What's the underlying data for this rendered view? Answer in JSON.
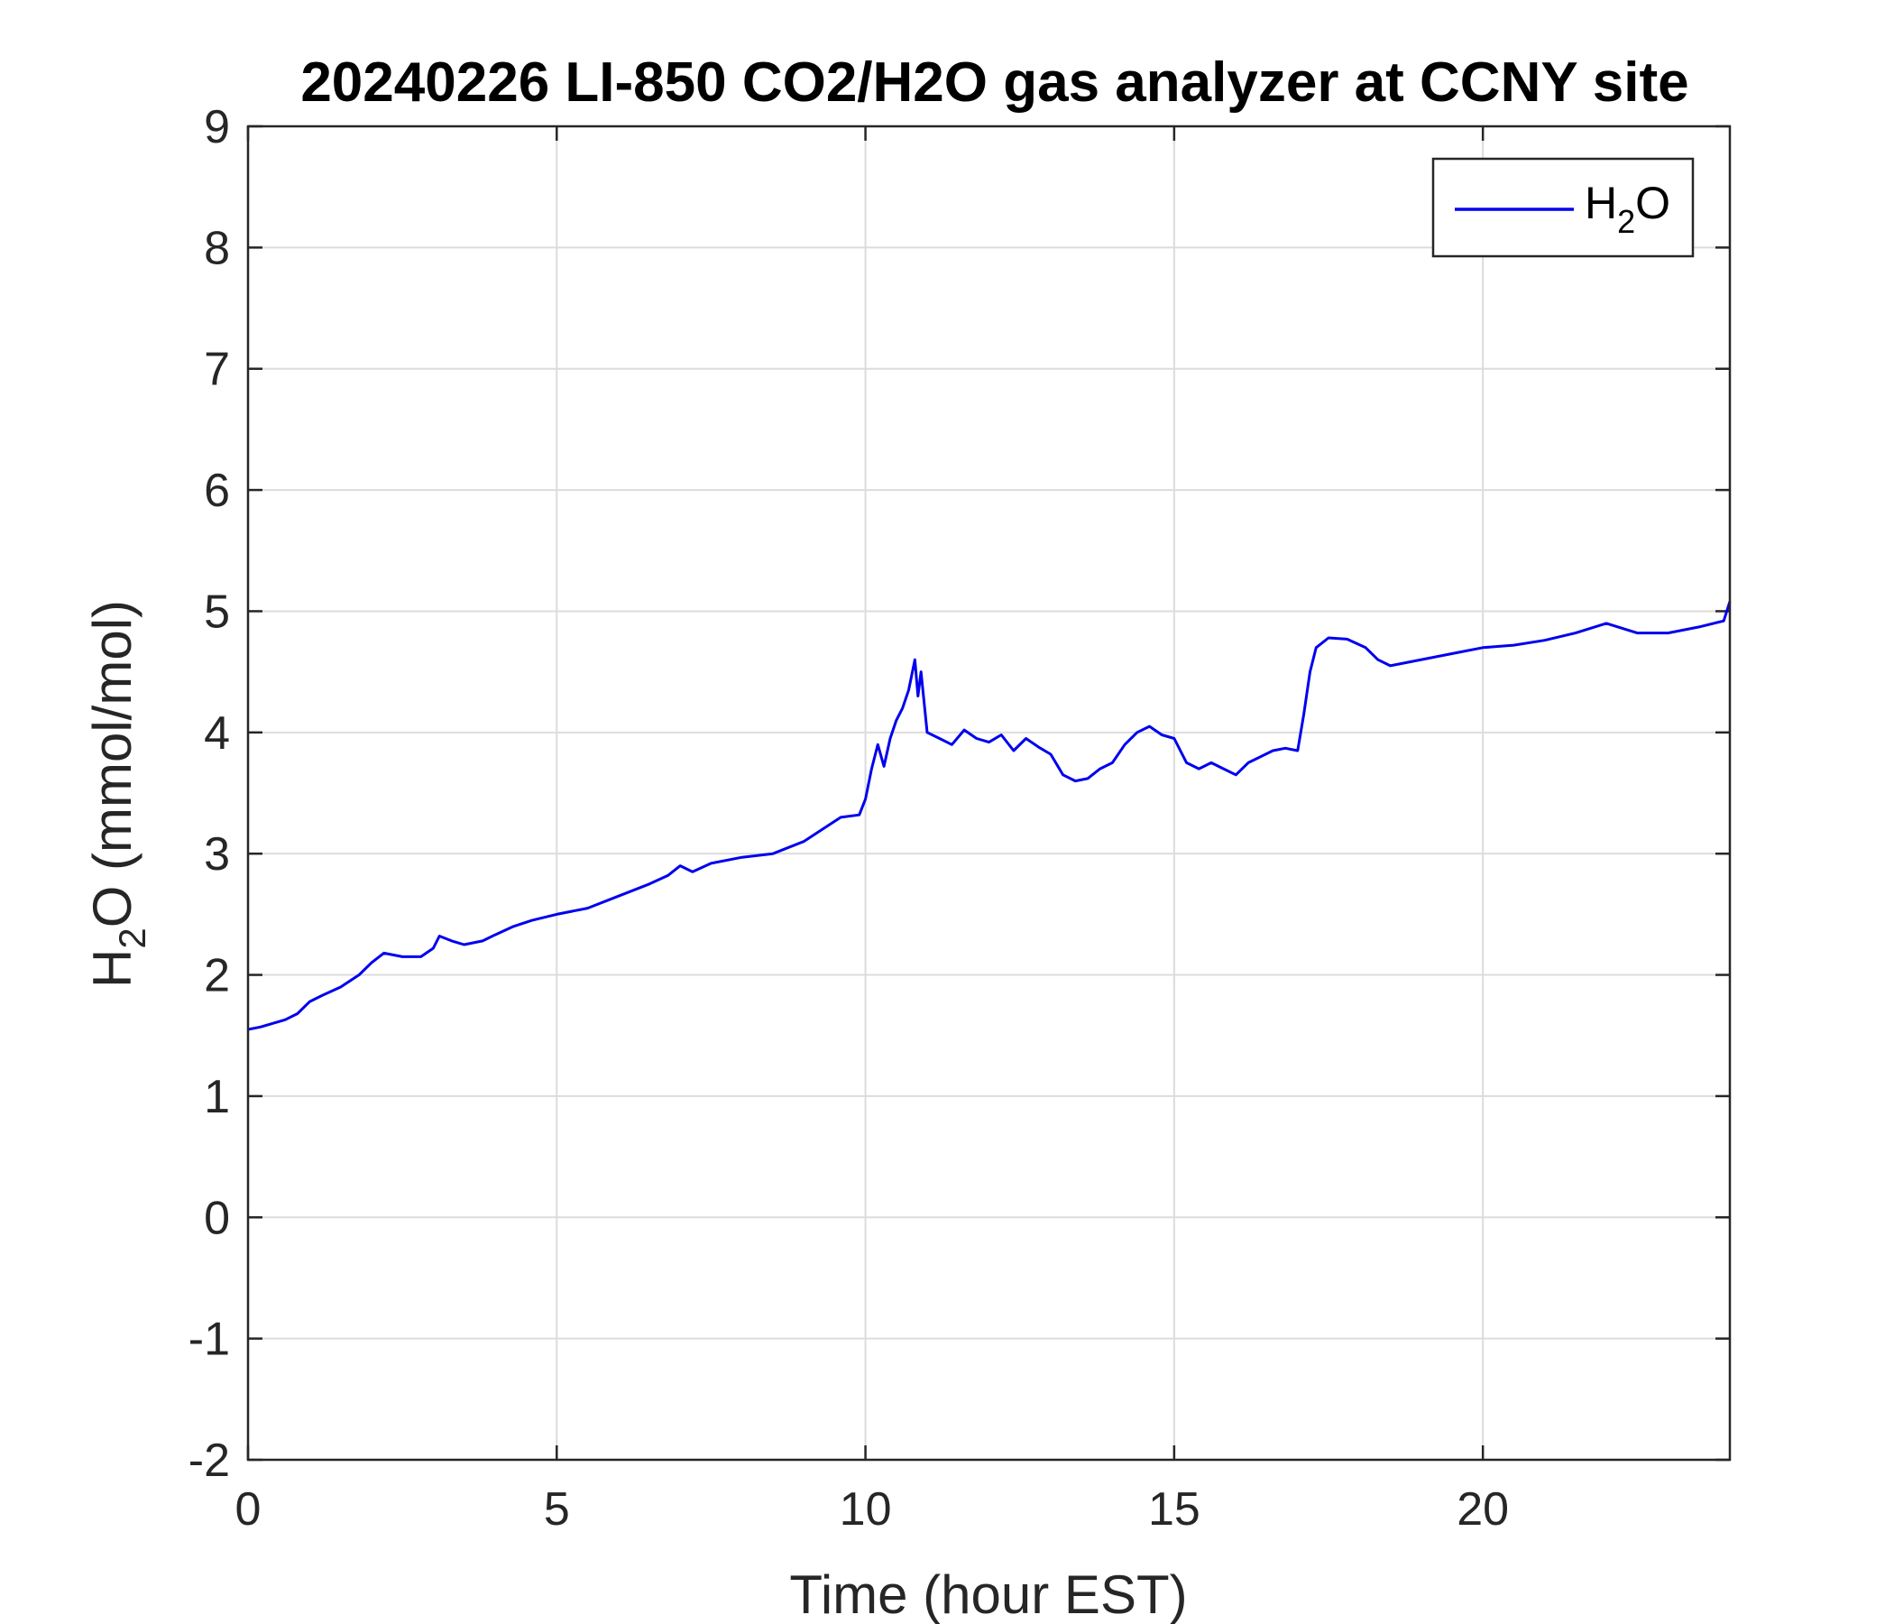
{
  "chart_data": {
    "type": "line",
    "title": "20240226 LI-850 CO2/H2O gas analyzer at CCNY site",
    "xlabel": "Time (hour EST)",
    "ylabel_main": "H",
    "ylabel_sub": "2",
    "ylabel_rest": "O (mmol/mol)",
    "xlim": [
      0,
      24
    ],
    "ylim": [
      -2,
      9
    ],
    "xticks": [
      0,
      5,
      10,
      15,
      20
    ],
    "yticks": [
      -2,
      -1,
      0,
      1,
      2,
      3,
      4,
      5,
      6,
      7,
      8,
      9
    ],
    "grid": true,
    "legend_position": "top-right",
    "series": [
      {
        "name_main": "H",
        "name_sub": "2",
        "name_rest": "O",
        "color": "#0000ee",
        "x": [
          0,
          0.2,
          0.4,
          0.6,
          0.8,
          1.0,
          1.2,
          1.5,
          1.8,
          2.0,
          2.2,
          2.5,
          2.8,
          3.0,
          3.1,
          3.3,
          3.5,
          3.8,
          4.0,
          4.3,
          4.6,
          5.0,
          5.5,
          6.0,
          6.5,
          6.8,
          7.0,
          7.2,
          7.5,
          8.0,
          8.5,
          9.0,
          9.3,
          9.6,
          9.9,
          10.0,
          10.1,
          10.2,
          10.3,
          10.4,
          10.5,
          10.6,
          10.7,
          10.8,
          10.85,
          10.9,
          11.0,
          11.2,
          11.4,
          11.6,
          11.8,
          12.0,
          12.2,
          12.4,
          12.6,
          12.8,
          13.0,
          13.2,
          13.4,
          13.6,
          13.8,
          14.0,
          14.2,
          14.4,
          14.6,
          14.8,
          15.0,
          15.2,
          15.4,
          15.6,
          15.8,
          16.0,
          16.2,
          16.4,
          16.6,
          16.8,
          17.0,
          17.1,
          17.2,
          17.3,
          17.5,
          17.8,
          18.1,
          18.3,
          18.5,
          18.8,
          19.2,
          19.6,
          20.0,
          20.5,
          21.0,
          21.5,
          22.0,
          22.5,
          23.0,
          23.5,
          23.9,
          24.0
        ],
        "y": [
          1.55,
          1.57,
          1.6,
          1.63,
          1.68,
          1.78,
          1.83,
          1.9,
          2.0,
          2.1,
          2.18,
          2.15,
          2.15,
          2.22,
          2.32,
          2.28,
          2.25,
          2.28,
          2.33,
          2.4,
          2.45,
          2.5,
          2.55,
          2.65,
          2.75,
          2.82,
          2.9,
          2.85,
          2.92,
          2.97,
          3.0,
          3.1,
          3.2,
          3.3,
          3.32,
          3.45,
          3.7,
          3.9,
          3.72,
          3.95,
          4.1,
          4.2,
          4.35,
          4.6,
          4.3,
          4.5,
          4.0,
          3.95,
          3.9,
          4.02,
          3.95,
          3.92,
          3.98,
          3.85,
          3.95,
          3.88,
          3.82,
          3.65,
          3.6,
          3.62,
          3.7,
          3.75,
          3.9,
          4.0,
          4.05,
          3.98,
          3.95,
          3.75,
          3.7,
          3.75,
          3.7,
          3.65,
          3.75,
          3.8,
          3.85,
          3.87,
          3.85,
          4.15,
          4.5,
          4.7,
          4.78,
          4.77,
          4.7,
          4.6,
          4.55,
          4.58,
          4.62,
          4.66,
          4.7,
          4.72,
          4.76,
          4.82,
          4.9,
          4.82,
          4.82,
          4.87,
          4.92,
          5.08
        ]
      }
    ]
  }
}
